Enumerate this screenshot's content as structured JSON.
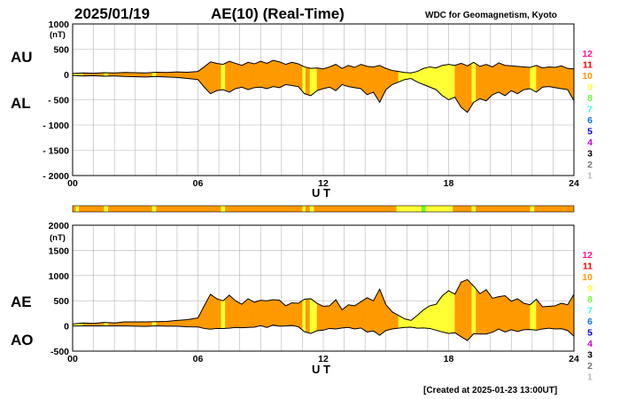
{
  "header": {
    "date": "2025/01/19",
    "title": "AE(10) (Real-Time)",
    "source": "WDC for Geomagnetism, Kyoto"
  },
  "footer": "[Created at 2025-01-23 13:00UT]",
  "station_count_colors": [
    {
      "count": "12",
      "color": "#ff1493"
    },
    {
      "count": "11",
      "color": "#ff0000"
    },
    {
      "count": "10",
      "color": "#ff9900"
    },
    {
      "count": "9",
      "color": "#ffff33"
    },
    {
      "count": "8",
      "color": "#66ff33"
    },
    {
      "count": "7",
      "color": "#33ffee"
    },
    {
      "count": "6",
      "color": "#0077ff"
    },
    {
      "count": "5",
      "color": "#0000dd"
    },
    {
      "count": "4",
      "color": "#cc00cc"
    },
    {
      "count": "3",
      "color": "#000000"
    },
    {
      "count": "2",
      "color": "#777777"
    },
    {
      "count": "1",
      "color": "#bbbbbb"
    }
  ],
  "chart_data": [
    {
      "type": "area",
      "panel": "AU/AL",
      "series_labels": [
        "AU",
        "AL"
      ],
      "xlabel": "U T",
      "unit": "(nT)",
      "x_ticks": [
        "00",
        "06",
        "12",
        "18",
        "24"
      ],
      "y_ticks": [
        "1000",
        "500",
        "0",
        "- 500",
        "- 1000",
        "- 1500",
        "- 2000"
      ],
      "xlim": [
        0,
        24
      ],
      "ylim": [
        -2000,
        1000
      ],
      "grid": true,
      "x_hours": [
        0,
        0.5,
        1,
        1.5,
        2,
        2.5,
        3,
        3.5,
        4,
        4.5,
        5,
        5.5,
        6,
        6.3,
        6.6,
        6.9,
        7.2,
        7.5,
        7.8,
        8.1,
        8.4,
        8.7,
        9,
        9.3,
        9.6,
        9.9,
        10.2,
        10.5,
        10.8,
        11.1,
        11.4,
        11.7,
        12,
        12.3,
        12.6,
        12.9,
        13.2,
        13.5,
        13.8,
        14.1,
        14.4,
        14.7,
        15,
        15.3,
        15.6,
        15.9,
        16.2,
        16.5,
        16.8,
        17.1,
        17.4,
        17.7,
        18,
        18.3,
        18.6,
        18.9,
        19.2,
        19.5,
        19.8,
        20.1,
        20.4,
        20.7,
        21,
        21.3,
        21.6,
        21.9,
        22.2,
        22.5,
        22.8,
        23.1,
        23.4,
        23.7,
        24
      ],
      "AU": [
        20,
        30,
        25,
        35,
        30,
        40,
        35,
        30,
        45,
        40,
        50,
        45,
        60,
        150,
        250,
        220,
        200,
        260,
        220,
        180,
        240,
        210,
        260,
        220,
        280,
        250,
        200,
        240,
        210,
        150,
        120,
        130,
        110,
        150,
        200,
        120,
        180,
        140,
        200,
        160,
        150,
        180,
        120,
        80,
        60,
        40,
        30,
        60,
        120,
        150,
        130,
        180,
        200,
        180,
        220,
        170,
        240,
        160,
        200,
        150,
        230,
        180,
        170,
        160,
        150,
        140,
        180,
        130,
        150,
        140,
        170,
        120,
        110
      ],
      "AL": [
        -20,
        -30,
        -25,
        -35,
        -30,
        -40,
        -45,
        -50,
        -40,
        -50,
        -60,
        -80,
        -100,
        -250,
        -380,
        -320,
        -300,
        -350,
        -280,
        -250,
        -300,
        -260,
        -250,
        -280,
        -240,
        -260,
        -200,
        -220,
        -240,
        -380,
        -420,
        -320,
        -280,
        -250,
        -320,
        -200,
        -240,
        -260,
        -280,
        -400,
        -350,
        -550,
        -300,
        -200,
        -150,
        -100,
        -80,
        -150,
        -200,
        -250,
        -300,
        -420,
        -500,
        -450,
        -650,
        -750,
        -550,
        -480,
        -520,
        -400,
        -350,
        -420,
        -320,
        -380,
        -300,
        -280,
        -350,
        -250,
        -240,
        -260,
        -280,
        -300,
        -520
      ]
    },
    {
      "type": "area",
      "panel": "AE/AO",
      "series_labels": [
        "AE",
        "AO"
      ],
      "xlabel": "U T",
      "unit": "(nT)",
      "x_ticks": [
        "00",
        "06",
        "12",
        "18",
        "24"
      ],
      "y_ticks": [
        "2000",
        "1500",
        "1000",
        "500",
        "0",
        "-500"
      ],
      "xlim": [
        0,
        24
      ],
      "ylim": [
        -500,
        2000
      ],
      "grid": true,
      "AE": [
        40,
        60,
        50,
        70,
        60,
        80,
        80,
        80,
        85,
        90,
        110,
        125,
        160,
        400,
        630,
        540,
        500,
        610,
        500,
        430,
        540,
        470,
        510,
        500,
        520,
        510,
        400,
        460,
        450,
        530,
        540,
        450,
        390,
        400,
        520,
        320,
        420,
        400,
        480,
        560,
        500,
        730,
        420,
        280,
        210,
        140,
        110,
        210,
        320,
        400,
        430,
        600,
        700,
        630,
        870,
        920,
        790,
        640,
        720,
        550,
        580,
        600,
        490,
        540,
        450,
        420,
        530,
        380,
        390,
        400,
        450,
        420,
        630
      ],
      "AO": [
        0,
        0,
        0,
        0,
        0,
        0,
        -5,
        -10,
        2,
        -5,
        -5,
        -17,
        -20,
        -50,
        -65,
        -50,
        -50,
        -45,
        -30,
        -35,
        -30,
        -25,
        5,
        -30,
        20,
        -5,
        0,
        10,
        -15,
        -115,
        -150,
        -95,
        -85,
        -50,
        -60,
        -40,
        -30,
        -60,
        -40,
        -120,
        -100,
        -185,
        -90,
        -60,
        -45,
        -30,
        -25,
        -45,
        -40,
        -50,
        -85,
        -120,
        -150,
        -135,
        -215,
        -290,
        -155,
        -160,
        -160,
        -125,
        -60,
        -120,
        -75,
        -110,
        -75,
        -70,
        -85,
        -60,
        -45,
        -60,
        -55,
        -90,
        -205
      ]
    }
  ],
  "quality_bar": {
    "base_color": "#ff9900",
    "segments": [
      {
        "start_hour": 0.15,
        "end_hour": 0.3,
        "color": "#ffff33"
      },
      {
        "start_hour": 1.5,
        "end_hour": 1.7,
        "color": "#ffff33"
      },
      {
        "start_hour": 3.8,
        "end_hour": 4.0,
        "color": "#ffff33"
      },
      {
        "start_hour": 7.1,
        "end_hour": 7.3,
        "color": "#ffff33"
      },
      {
        "start_hour": 11.0,
        "end_hour": 11.15,
        "color": "#ffff33"
      },
      {
        "start_hour": 11.35,
        "end_hour": 11.55,
        "color": "#ffff33"
      },
      {
        "start_hour": 15.5,
        "end_hour": 18.2,
        "color": "#ffff33"
      },
      {
        "start_hour": 16.7,
        "end_hour": 16.9,
        "color": "#66ff33"
      },
      {
        "start_hour": 19.1,
        "end_hour": 19.3,
        "color": "#ffff33"
      },
      {
        "start_hour": 21.9,
        "end_hour": 22.1,
        "color": "#ffff33"
      }
    ]
  }
}
